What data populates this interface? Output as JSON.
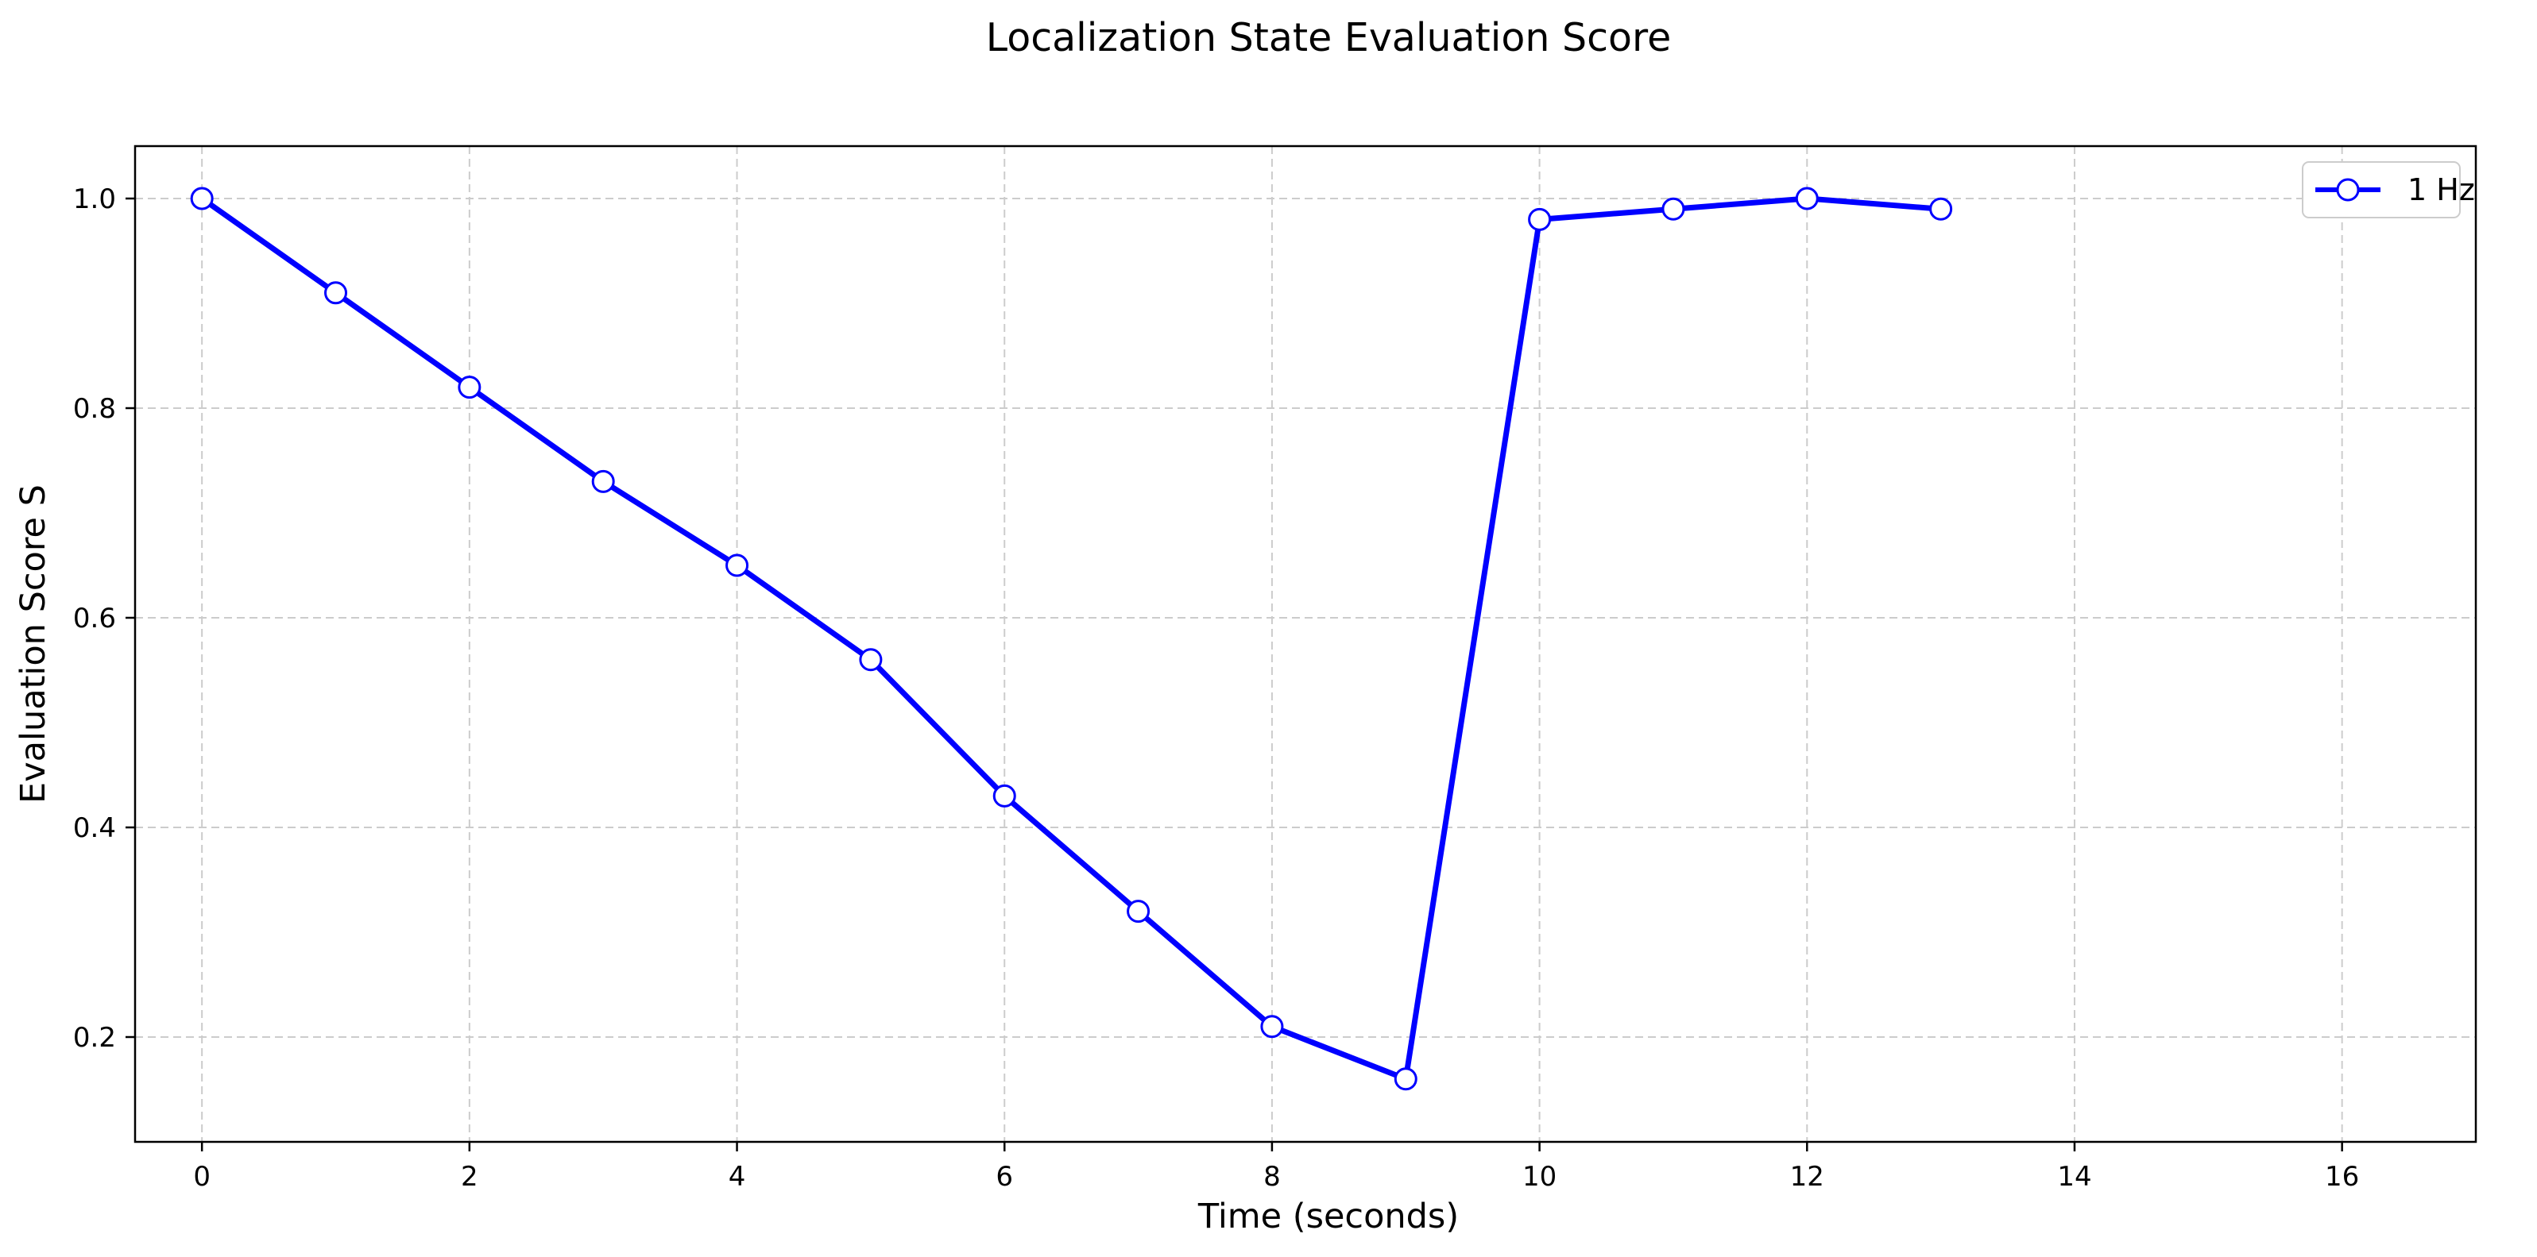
{
  "chart_data": {
    "type": "line",
    "title": "Localization State Evaluation Score",
    "xlabel": "Time (seconds)",
    "ylabel": "Evaluation Score S",
    "xlim": [
      -0.5,
      17.0
    ],
    "ylim": [
      0.1,
      1.05
    ],
    "x_ticks": [
      0,
      2,
      4,
      6,
      8,
      10,
      12,
      14,
      16
    ],
    "y_ticks": [
      0.2,
      0.4,
      0.6,
      0.8,
      1.0
    ],
    "x_tick_labels": [
      "0",
      "2",
      "4",
      "6",
      "8",
      "10",
      "12",
      "14",
      "16"
    ],
    "y_tick_labels": [
      "0.2",
      "0.4",
      "0.6",
      "0.8",
      "1.0"
    ],
    "grid": true,
    "legend_position": "top-right",
    "series": [
      {
        "name": "1 Hz",
        "color": "#0000ff",
        "marker": "open-circle",
        "x": [
          0,
          1,
          2,
          3,
          4,
          5,
          6,
          7,
          8,
          9,
          10,
          11,
          12,
          13
        ],
        "y": [
          1.0,
          0.91,
          0.82,
          0.73,
          0.65,
          0.56,
          0.43,
          0.32,
          0.21,
          0.16,
          0.98,
          0.99,
          1.0,
          0.99
        ]
      }
    ]
  }
}
